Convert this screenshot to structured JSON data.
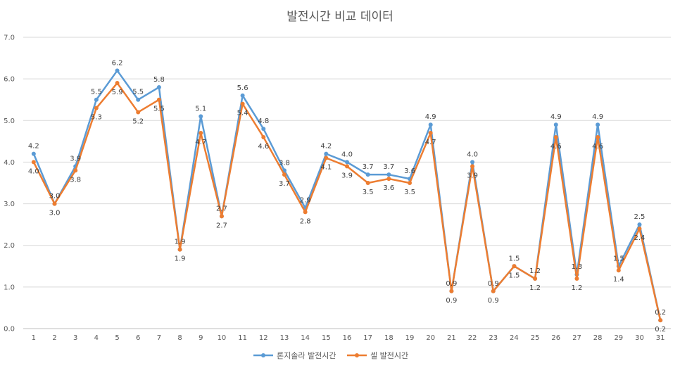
{
  "chart_data": {
    "type": "line",
    "title": "발전시간 비교 데이터",
    "xlabel": "",
    "ylabel": "",
    "ylim": [
      0,
      7
    ],
    "yticks": [
      "0.0",
      "1.0",
      "2.0",
      "3.0",
      "4.0",
      "5.0",
      "6.0",
      "7.0"
    ],
    "grid": true,
    "legend_position": "bottom",
    "categories": [
      "1",
      "2",
      "3",
      "4",
      "5",
      "6",
      "7",
      "8",
      "9",
      "10",
      "11",
      "12",
      "13",
      "14",
      "15",
      "16",
      "17",
      "18",
      "19",
      "20",
      "21",
      "22",
      "23",
      "24",
      "25",
      "26",
      "27",
      "28",
      "29",
      "30",
      "31"
    ],
    "series": [
      {
        "name": "론지솔라 발전시간",
        "color": "#5b9bd5",
        "values": [
          4.2,
          3.0,
          3.9,
          5.5,
          6.2,
          5.5,
          5.8,
          1.9,
          5.1,
          2.7,
          5.6,
          4.8,
          3.8,
          2.9,
          4.2,
          4.0,
          3.7,
          3.7,
          3.6,
          4.9,
          0.9,
          4.0,
          0.9,
          1.5,
          1.2,
          4.9,
          1.3,
          4.9,
          1.5,
          2.5,
          0.2
        ]
      },
      {
        "name": "셀 발전시간",
        "color": "#ed7d31",
        "values": [
          4.0,
          3.0,
          3.8,
          5.3,
          5.9,
          5.2,
          5.5,
          1.9,
          4.7,
          2.7,
          5.4,
          4.6,
          3.7,
          2.8,
          4.1,
          3.9,
          3.5,
          3.6,
          3.5,
          4.7,
          0.9,
          3.9,
          0.9,
          1.5,
          1.2,
          4.6,
          1.2,
          4.6,
          1.4,
          2.4,
          0.2
        ]
      }
    ]
  }
}
